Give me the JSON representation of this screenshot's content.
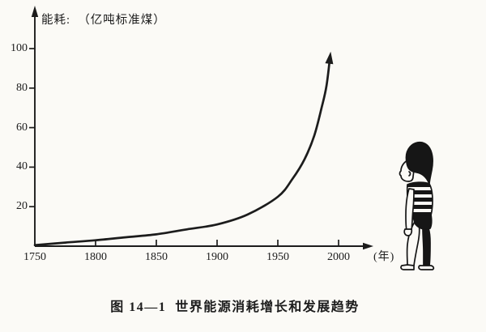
{
  "figure": {
    "y_axis_title": "能耗:  （亿吨标准煤）",
    "x_axis_unit": "(年)",
    "caption": "图 14—1  世界能源消耗增长和发展趋势",
    "illustration": "child-figure"
  },
  "chart_data": {
    "type": "line",
    "title": "图 14—1 世界能源消耗增长和发展趋势",
    "xlabel": "年",
    "ylabel": "能耗（亿吨标准煤）",
    "x_ticks": [
      1750,
      1800,
      1850,
      1900,
      1950,
      2000
    ],
    "y_ticks": [
      20,
      40,
      60,
      80,
      100
    ],
    "xlim": [
      1750,
      2020
    ],
    "ylim": [
      0,
      120
    ],
    "grid": false,
    "legend": "none",
    "series": [
      {
        "name": "世界能源消耗",
        "arrow_end": true,
        "points": [
          [
            1750,
            0.5
          ],
          [
            1775,
            1.8
          ],
          [
            1800,
            3
          ],
          [
            1825,
            4.5
          ],
          [
            1850,
            6
          ],
          [
            1875,
            8.5
          ],
          [
            1900,
            11
          ],
          [
            1925,
            16
          ],
          [
            1950,
            25
          ],
          [
            1962,
            34
          ],
          [
            1972,
            44
          ],
          [
            1980,
            56
          ],
          [
            1986,
            70
          ],
          [
            1990,
            81
          ],
          [
            1993,
            96
          ]
        ]
      }
    ],
    "colors": {
      "ink": "#1c1c1c",
      "paper": "#fbfaf6"
    }
  }
}
